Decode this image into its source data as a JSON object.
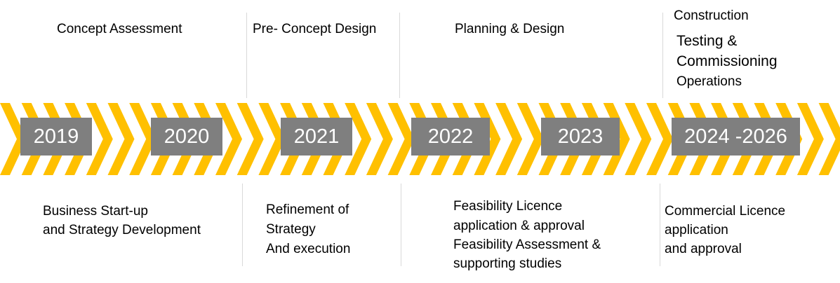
{
  "colors": {
    "accent": "#ffc000",
    "year_box": "#7f7f7f",
    "divider": "#d9d9d9"
  },
  "phases_top": [
    "Concept Assessment",
    "Pre- Concept Design",
    "Planning & Design",
    "Construction"
  ],
  "top_extra": [
    "Testing &",
    "Commissioning",
    "Operations"
  ],
  "years": [
    "2019",
    "2020",
    "2021",
    "2022",
    "2023",
    "2024 -2026"
  ],
  "descriptions": [
    [
      "Business Start-up",
      "and Strategy Development"
    ],
    [
      "Refinement of",
      "Strategy",
      "And execution"
    ],
    [
      "Feasibility Licence",
      "application & approval",
      "Feasibility Assessment &",
      "supporting studies"
    ],
    [
      "Commercial Licence",
      "application",
      "and approval"
    ]
  ]
}
